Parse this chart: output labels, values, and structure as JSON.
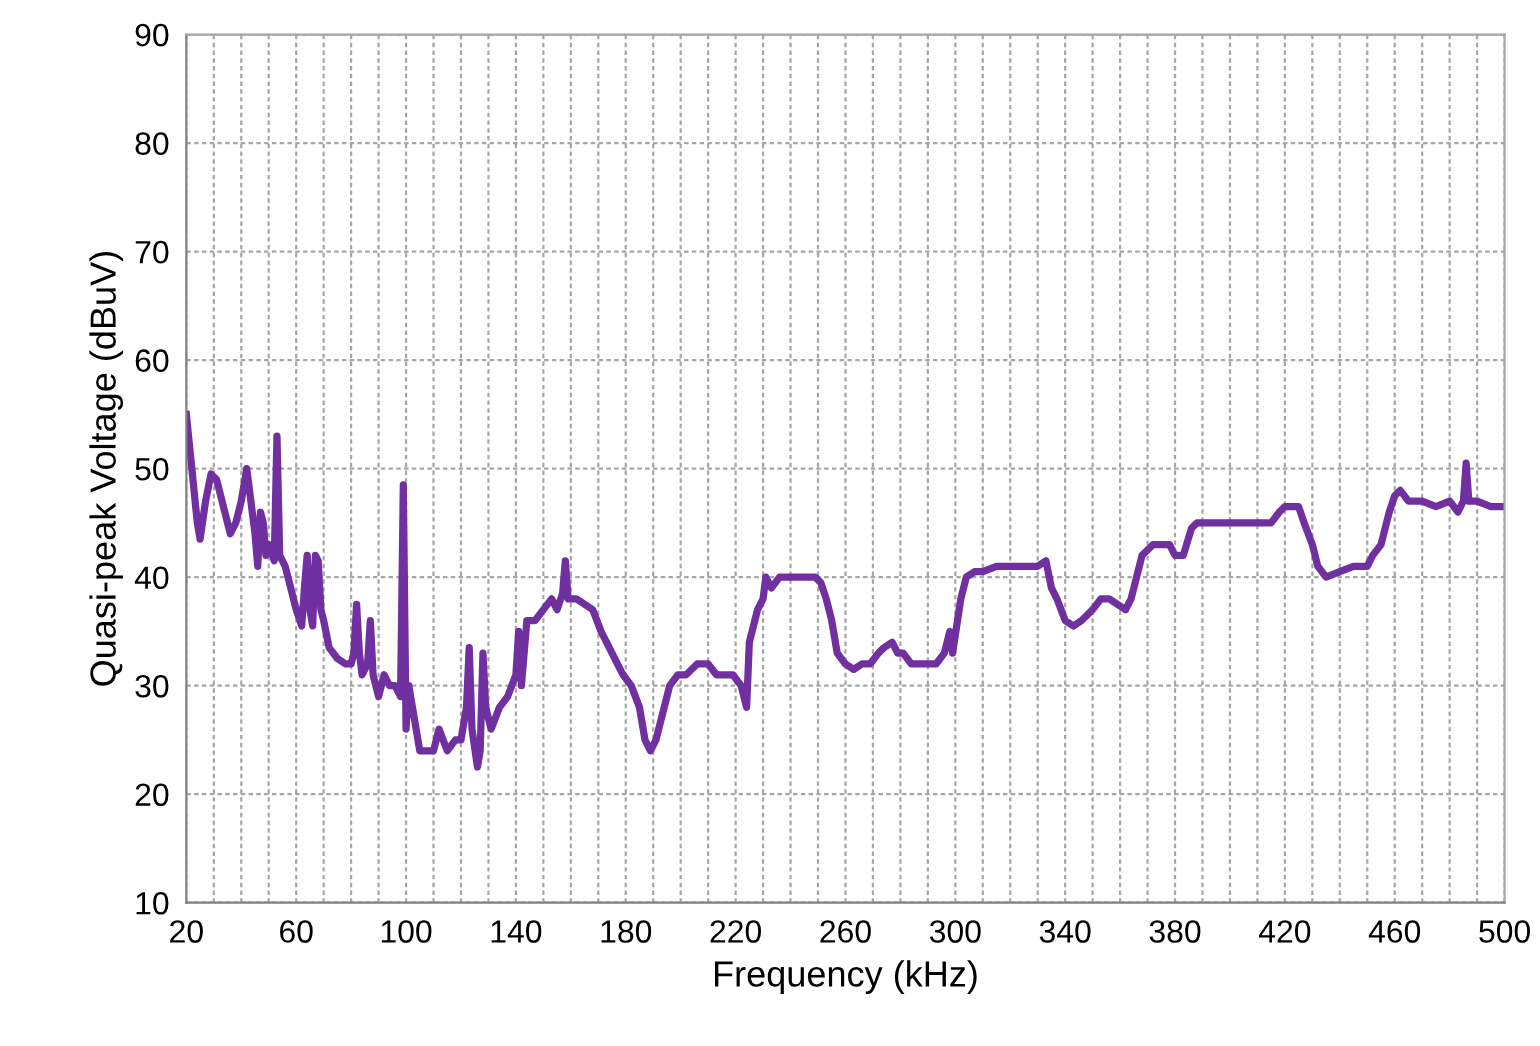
{
  "chart_data": {
    "type": "line",
    "xlabel": "Frequency (kHz)",
    "ylabel": "Quasi-peak Voltage (dBuV)",
    "xlim": [
      20,
      500
    ],
    "ylim": [
      10,
      90
    ],
    "xticks": [
      20,
      {
        "value": 30,
        "label": null
      },
      {
        "value": 40,
        "label": null
      },
      {
        "value": 50,
        "label": null
      },
      60,
      {
        "value": 70,
        "label": null
      },
      {
        "value": 80,
        "label": null
      },
      {
        "value": 90,
        "label": null
      },
      100,
      {
        "value": 110,
        "label": null
      },
      {
        "value": 120,
        "label": null
      },
      {
        "value": 130,
        "label": null
      },
      140,
      {
        "value": 150,
        "label": null
      },
      {
        "value": 160,
        "label": null
      },
      {
        "value": 170,
        "label": null
      },
      180,
      {
        "value": 190,
        "label": null
      },
      {
        "value": 200,
        "label": null
      },
      {
        "value": 210,
        "label": null
      },
      220,
      {
        "value": 230,
        "label": null
      },
      {
        "value": 240,
        "label": null
      },
      {
        "value": 250,
        "label": null
      },
      260,
      {
        "value": 270,
        "label": null
      },
      {
        "value": 280,
        "label": null
      },
      {
        "value": 290,
        "label": null
      },
      300,
      {
        "value": 310,
        "label": null
      },
      {
        "value": 320,
        "label": null
      },
      {
        "value": 330,
        "label": null
      },
      340,
      {
        "value": 350,
        "label": null
      },
      {
        "value": 360,
        "label": null
      },
      {
        "value": 370,
        "label": null
      },
      380,
      {
        "value": 390,
        "label": null
      },
      {
        "value": 400,
        "label": null
      },
      {
        "value": 410,
        "label": null
      },
      420,
      {
        "value": 430,
        "label": null
      },
      {
        "value": 440,
        "label": null
      },
      {
        "value": 450,
        "label": null
      },
      460,
      {
        "value": 470,
        "label": null
      },
      {
        "value": 480,
        "label": null
      },
      {
        "value": 490,
        "label": null
      },
      500
    ],
    "yticks": [
      10,
      20,
      30,
      40,
      50,
      60,
      70,
      80,
      90
    ],
    "grid": true,
    "marker": "none",
    "line_style": "solid",
    "series": [
      {
        "color": "#7030a0",
        "x": [
          20,
          22,
          24,
          25,
          27,
          29,
          31,
          33,
          35,
          36,
          38,
          40,
          42,
          43,
          45,
          46,
          47,
          48,
          49,
          50,
          52,
          53,
          54,
          56,
          58,
          60,
          62,
          63,
          64,
          65,
          66,
          67,
          68,
          69,
          70,
          72,
          75,
          78,
          80,
          81,
          82,
          83,
          84,
          86,
          87,
          88,
          90,
          92,
          94,
          96,
          98,
          99,
          100,
          101,
          103,
          105,
          110,
          112,
          115,
          118,
          120,
          122,
          123,
          124,
          126,
          127,
          128,
          129,
          131,
          134,
          137,
          140,
          141,
          142,
          144,
          147,
          150,
          153,
          155,
          157,
          158,
          159,
          162,
          165,
          168,
          171,
          175,
          179,
          182,
          185,
          187,
          189,
          191,
          194,
          196,
          199,
          202,
          206,
          210,
          213,
          216,
          219,
          222,
          224,
          225,
          228,
          230,
          231,
          233,
          236,
          240,
          243,
          246,
          249,
          251,
          253,
          255,
          257,
          260,
          263,
          266,
          269,
          272,
          274,
          277,
          279,
          281,
          284,
          287,
          290,
          293,
          296,
          298,
          299,
          302,
          304,
          307,
          310,
          315,
          320,
          325,
          330,
          333,
          335,
          337,
          340,
          343,
          346,
          350,
          353,
          356,
          359,
          362,
          364,
          366,
          368,
          370,
          372,
          375,
          378,
          380,
          383,
          386,
          388,
          392,
          395,
          400,
          405,
          410,
          415,
          418,
          420,
          425,
          427,
          430,
          432,
          435,
          440,
          445,
          450,
          452,
          455,
          458,
          460,
          462,
          465,
          468,
          470,
          475,
          480,
          483,
          485,
          486,
          487,
          490,
          495,
          500
        ],
        "values": [
          55,
          50,
          45,
          43.5,
          47,
          49.5,
          49,
          47,
          45,
          44,
          45,
          47,
          50,
          48,
          44,
          41,
          46,
          45,
          42,
          43,
          41.5,
          53,
          42,
          41,
          39,
          37,
          35.5,
          39,
          42,
          37,
          35.5,
          42,
          41.5,
          37,
          36,
          33.5,
          32.5,
          32,
          32,
          33,
          37.5,
          33,
          31,
          32,
          36,
          31,
          29,
          31,
          30,
          30,
          29,
          48.5,
          26,
          30,
          27,
          24,
          24,
          26,
          24,
          25,
          25,
          28,
          33.5,
          26,
          22.5,
          24,
          33,
          28,
          26,
          28,
          29,
          31,
          35,
          30,
          36,
          36,
          37,
          38,
          37,
          38.5,
          41.5,
          38,
          38,
          37.5,
          37,
          35,
          33,
          31,
          30,
          28,
          25,
          24,
          25,
          28,
          30,
          31,
          31,
          32,
          32,
          31,
          31,
          31,
          30,
          28,
          34,
          37,
          38,
          40,
          39,
          40,
          40,
          40,
          40,
          40,
          39.5,
          38,
          36,
          33,
          32,
          31.5,
          32,
          32,
          33,
          33.5,
          34,
          33,
          33,
          32,
          32,
          32,
          32,
          33,
          35,
          33,
          38,
          40,
          40.5,
          40.5,
          41,
          41,
          41,
          41,
          41.5,
          39,
          38,
          36,
          35.5,
          36,
          37,
          38,
          38,
          37.5,
          37,
          38,
          40,
          42,
          42.5,
          43,
          43,
          43,
          42,
          42,
          44.5,
          45,
          45,
          45,
          45,
          45,
          45,
          45,
          46,
          46.5,
          46.5,
          45,
          43,
          41,
          40,
          40.5,
          41,
          41,
          42,
          43,
          46,
          47.5,
          48,
          47,
          47,
          47,
          46.5,
          47,
          46,
          47,
          50.5,
          47,
          47,
          46.5,
          46.5
        ]
      }
    ]
  }
}
